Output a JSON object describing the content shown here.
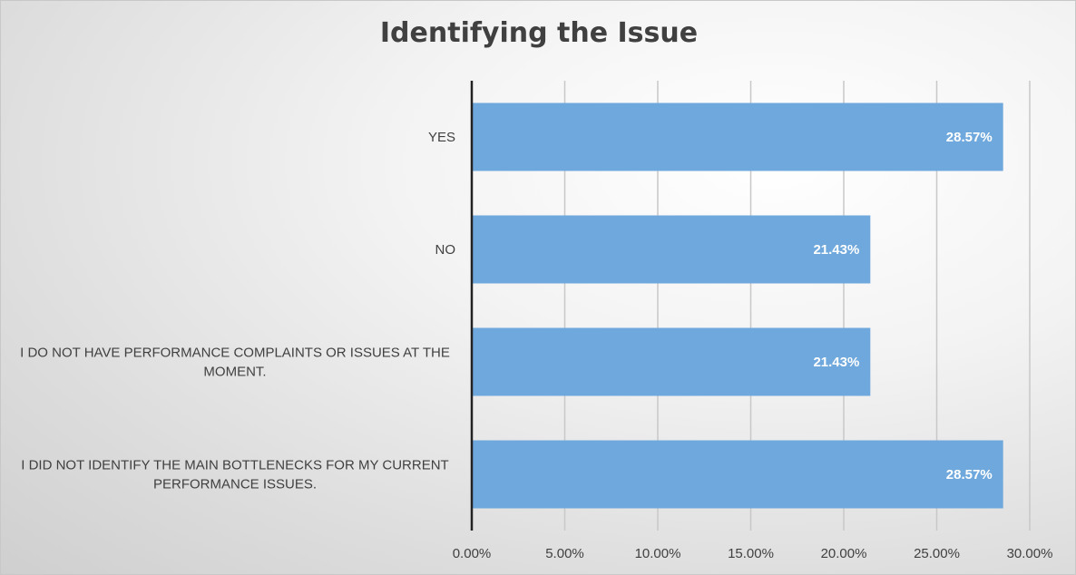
{
  "chart_data": {
    "type": "bar",
    "orientation": "horizontal",
    "title": "Identifying the Issue",
    "categories": [
      [
        "YES"
      ],
      [
        "NO"
      ],
      [
        "I DO NOT HAVE PERFORMANCE COMPLAINTS OR ISSUES AT THE",
        "MOMENT."
      ],
      [
        "I DID NOT IDENTIFY THE MAIN BOTTLENECKS FOR MY CURRENT",
        "PERFORMANCE ISSUES."
      ]
    ],
    "values": [
      28.57,
      21.43,
      21.43,
      28.57
    ],
    "data_labels": [
      "28.57%",
      "21.43%",
      "21.43%",
      "28.57%"
    ],
    "x_ticks": [
      "0.00%",
      "5.00%",
      "10.00%",
      "15.00%",
      "20.00%",
      "25.00%",
      "30.00%"
    ],
    "xlim": [
      0,
      30
    ],
    "grid": true,
    "legend": "none",
    "colors": {
      "bar": "#6fa8dc",
      "grid": "#c8c8c8",
      "axis": "#222222"
    }
  }
}
